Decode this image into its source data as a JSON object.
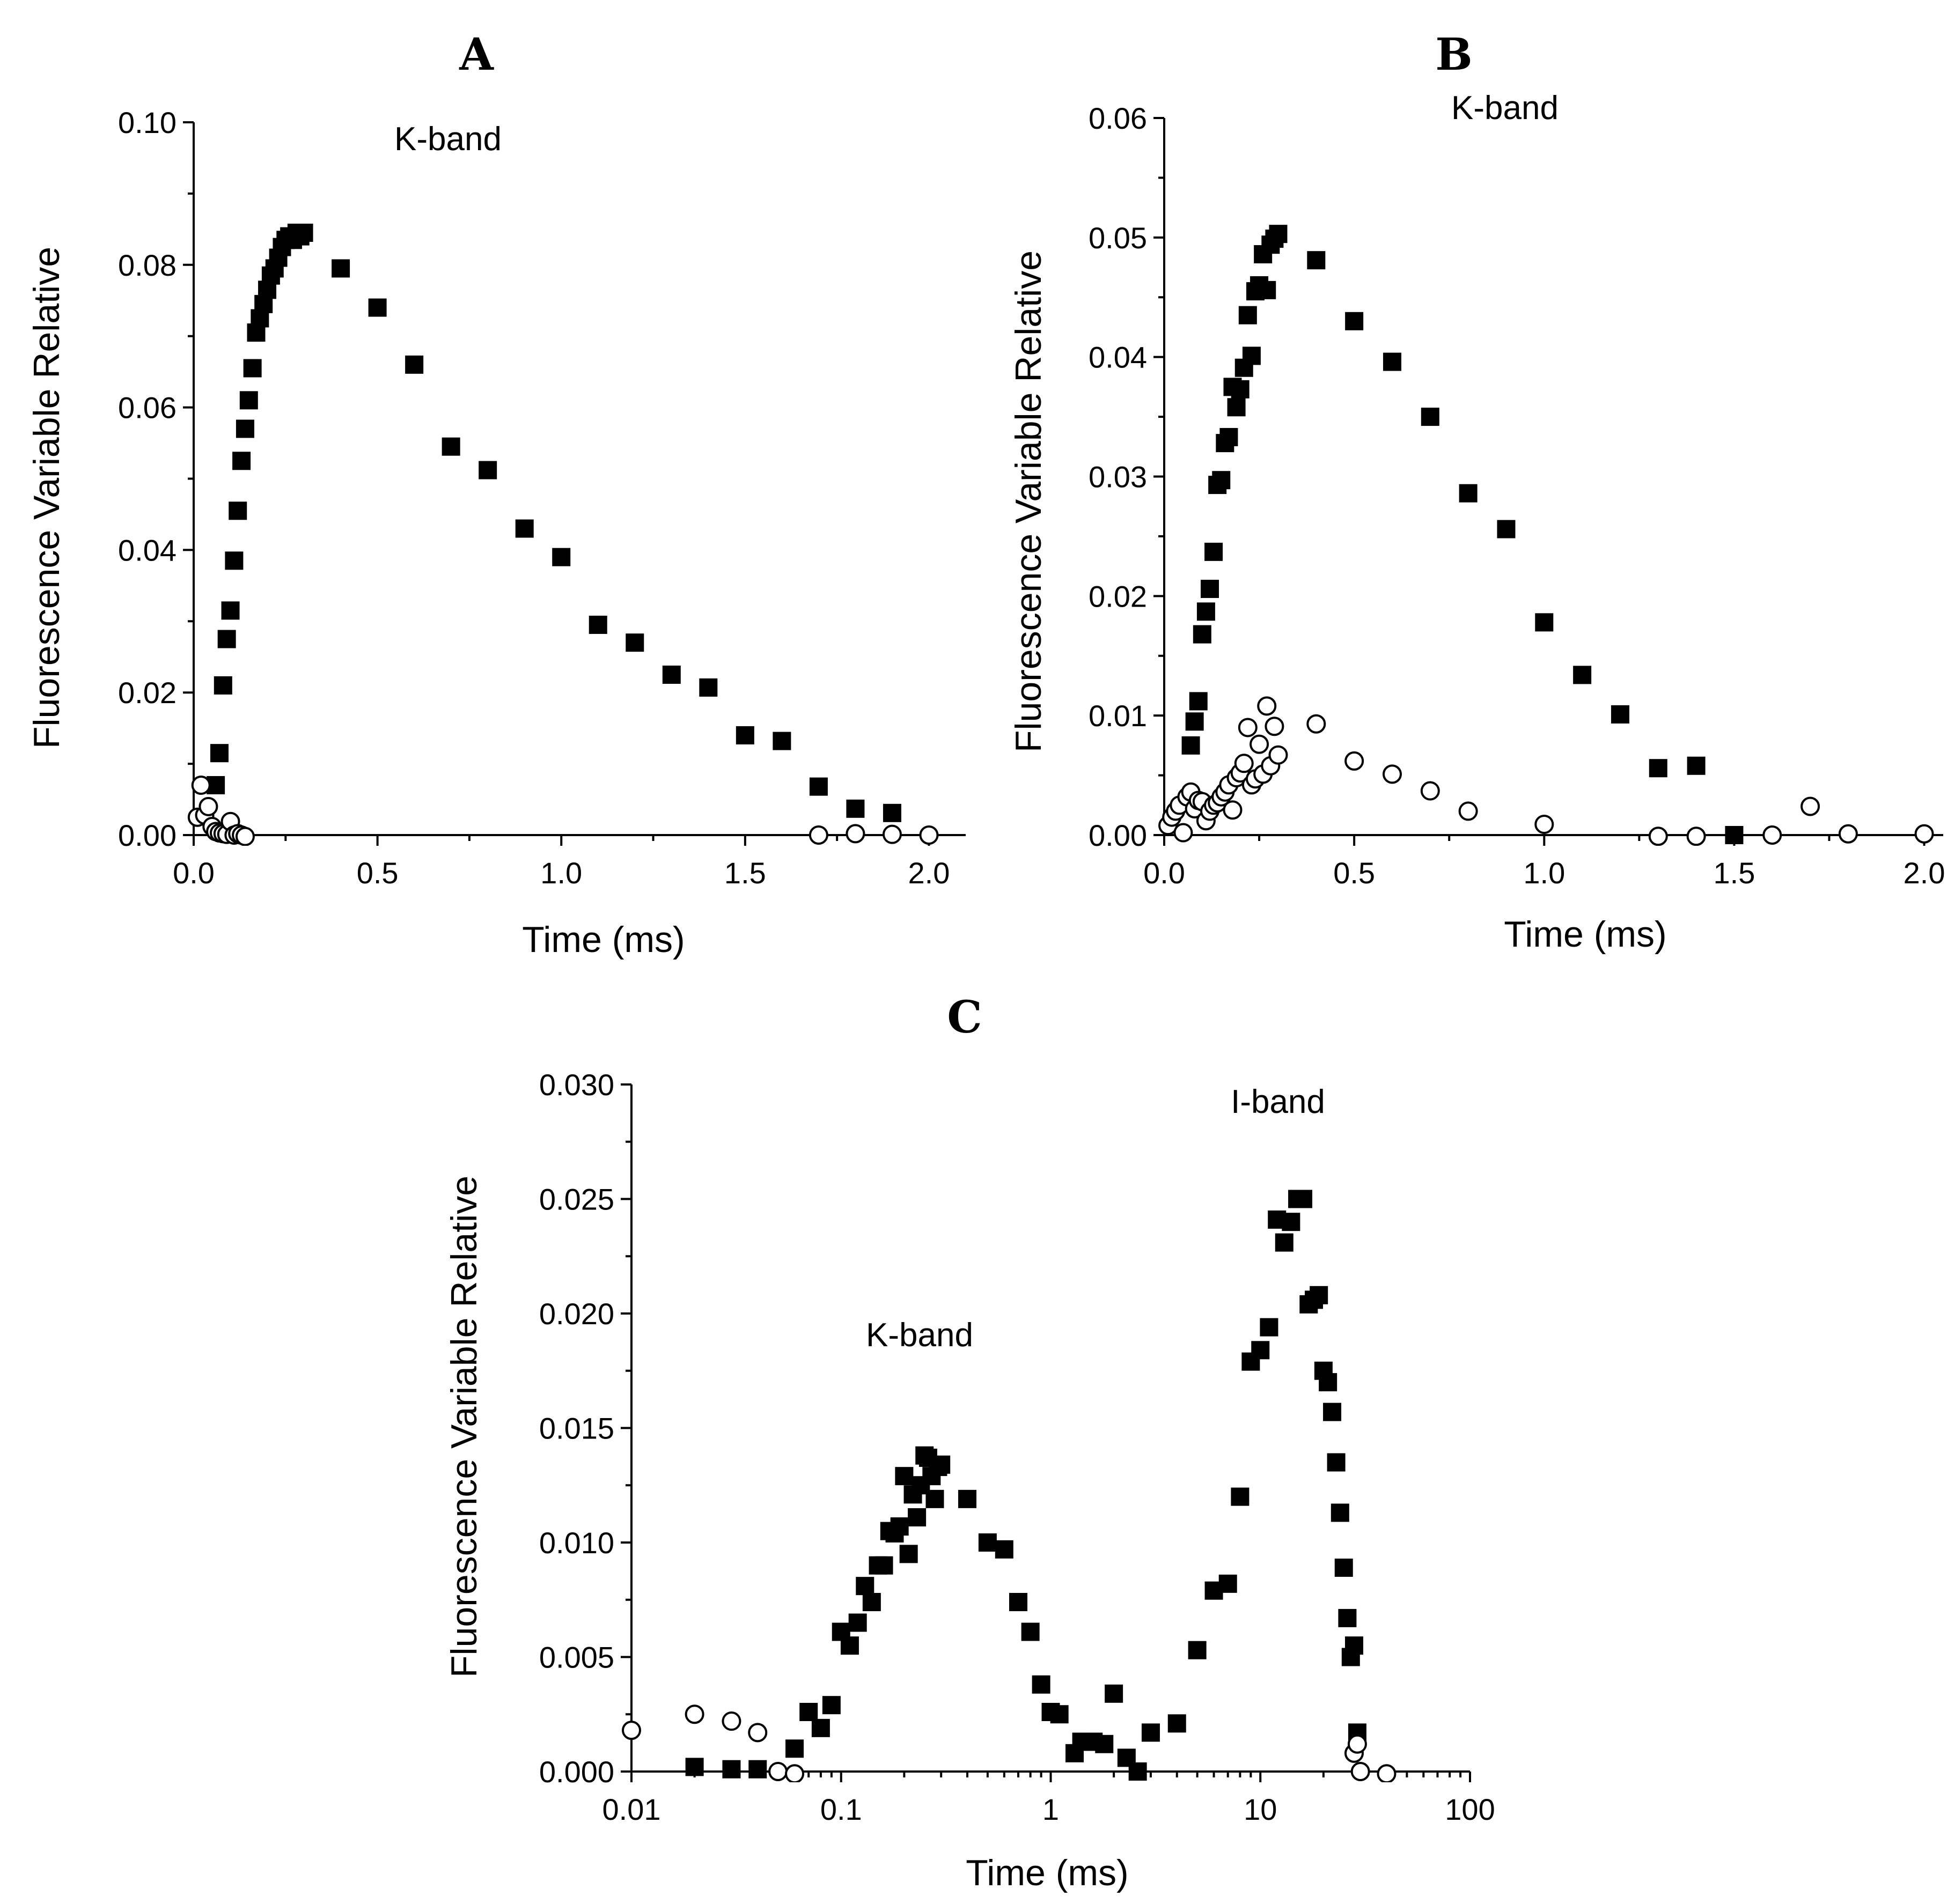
{
  "chart_data": [
    {
      "type": "scatter",
      "panel": "A",
      "title": "A",
      "annotations": [
        "K-band"
      ],
      "xlabel": "Time  (ms)",
      "ylabel": "Fluorescence Variable Relative",
      "xscale": "linear",
      "xlim": [
        0,
        2.1
      ],
      "ylim": [
        0,
        0.1
      ],
      "xticks": [
        0,
        0.5,
        1.0,
        1.5,
        2.0
      ],
      "xtick_labels": [
        "0.0",
        "0.5",
        "1.0",
        "1.5",
        "2.0"
      ],
      "yticks": [
        0,
        0.02,
        0.04,
        0.06,
        0.08,
        0.1
      ],
      "ytick_labels": [
        "0.00",
        "0.02",
        "0.04",
        "0.06",
        "0.08",
        "0.10"
      ],
      "series": [
        {
          "name": "filled squares",
          "marker": "square",
          "x": [
            0.06,
            0.07,
            0.08,
            0.09,
            0.1,
            0.11,
            0.12,
            0.13,
            0.14,
            0.15,
            0.16,
            0.17,
            0.18,
            0.19,
            0.2,
            0.21,
            0.22,
            0.23,
            0.24,
            0.25,
            0.26,
            0.27,
            0.28,
            0.29,
            0.3,
            0.4,
            0.5,
            0.6,
            0.7,
            0.8,
            0.9,
            1.0,
            1.1,
            1.2,
            1.3,
            1.4,
            1.5,
            1.6,
            1.7,
            1.8,
            1.9
          ],
          "y": [
            0.007,
            0.0115,
            0.021,
            0.0275,
            0.0315,
            0.0385,
            0.0455,
            0.0525,
            0.057,
            0.061,
            0.0655,
            0.0705,
            0.0725,
            0.0745,
            0.0765,
            0.0785,
            0.0795,
            0.081,
            0.0825,
            0.0835,
            0.084,
            0.0835,
            0.0845,
            0.084,
            0.0845,
            0.0795,
            0.074,
            0.066,
            0.0545,
            0.0512,
            0.043,
            0.039,
            0.0295,
            0.027,
            0.0225,
            0.0207,
            0.014,
            0.0132,
            0.0068,
            0.0037,
            0.0031
          ]
        },
        {
          "name": "open circles",
          "marker": "circle",
          "x": [
            0.01,
            0.02,
            0.03,
            0.04,
            0.05,
            0.06,
            0.07,
            0.08,
            0.09,
            0.1,
            0.11,
            0.12,
            0.13,
            0.14,
            1.7,
            1.8,
            1.9,
            2.0
          ],
          "y": [
            0.0025,
            0.007,
            0.0028,
            0.004,
            0.0012,
            0.0005,
            0.0003,
            0.0002,
            0.0001,
            0.0019,
            0.0,
            0.0002,
            0.0,
            -0.0002,
            0.0,
            0.0002,
            0.0001,
            0.0
          ]
        }
      ]
    },
    {
      "type": "scatter",
      "panel": "B",
      "title": "B",
      "annotations": [
        "K-band"
      ],
      "xlabel": "Time  (ms)",
      "ylabel": "Fluorescence Variable Relative",
      "xscale": "linear",
      "xlim": [
        0,
        2.05
      ],
      "ylim": [
        0,
        0.06
      ],
      "xticks": [
        0,
        0.5,
        1.0,
        1.5,
        2.0
      ],
      "xtick_labels": [
        "0.0",
        "0.5",
        "1.0",
        "1.5",
        "2.0"
      ],
      "yticks": [
        0,
        0.01,
        0.02,
        0.03,
        0.04,
        0.05,
        0.06
      ],
      "ytick_labels": [
        "0.00",
        "0.01",
        "0.02",
        "0.03",
        "0.04",
        "0.05",
        "0.06"
      ],
      "series": [
        {
          "name": "filled squares",
          "marker": "square",
          "x": [
            0.07,
            0.08,
            0.09,
            0.1,
            0.11,
            0.12,
            0.13,
            0.14,
            0.15,
            0.16,
            0.17,
            0.18,
            0.19,
            0.2,
            0.21,
            0.22,
            0.23,
            0.24,
            0.25,
            0.26,
            0.27,
            0.28,
            0.29,
            0.3,
            0.4,
            0.5,
            0.6,
            0.7,
            0.8,
            0.9,
            1.0,
            1.1,
            1.2,
            1.3,
            1.4,
            1.5
          ],
          "y": [
            0.0075,
            0.0095,
            0.0112,
            0.0168,
            0.0187,
            0.0206,
            0.0237,
            0.0293,
            0.0297,
            0.0328,
            0.0333,
            0.0375,
            0.0358,
            0.0373,
            0.0391,
            0.0435,
            0.0401,
            0.0455,
            0.046,
            0.0486,
            0.0456,
            0.0494,
            0.0499,
            0.0503,
            0.0481,
            0.043,
            0.0396,
            0.035,
            0.0286,
            0.0256,
            0.0178,
            0.0134,
            0.0101,
            0.0056,
            0.0058,
            0.0
          ]
        },
        {
          "name": "open circles",
          "marker": "circle",
          "x": [
            0.01,
            0.02,
            0.03,
            0.04,
            0.05,
            0.06,
            0.07,
            0.08,
            0.09,
            0.1,
            0.11,
            0.12,
            0.13,
            0.14,
            0.15,
            0.16,
            0.17,
            0.18,
            0.19,
            0.2,
            0.21,
            0.22,
            0.23,
            0.24,
            0.25,
            0.26,
            0.27,
            0.28,
            0.29,
            0.3,
            0.4,
            0.5,
            0.6,
            0.7,
            0.8,
            1.0,
            1.3,
            1.4,
            1.6,
            1.7,
            1.8,
            2.0
          ],
          "y": [
            0.0008,
            0.0015,
            0.002,
            0.0025,
            0.0002,
            0.0032,
            0.0036,
            0.0022,
            0.0029,
            0.0028,
            0.0012,
            0.002,
            0.0025,
            0.0027,
            0.0032,
            0.0036,
            0.0042,
            0.0021,
            0.0048,
            0.0052,
            0.006,
            0.009,
            0.0042,
            0.0047,
            0.0076,
            0.0051,
            0.0108,
            0.0058,
            0.0091,
            0.0067,
            0.0093,
            0.0062,
            0.0051,
            0.0037,
            0.002,
            0.0009,
            -0.0001,
            -0.0001,
            0.0,
            0.0024,
            0.0001,
            0.0001
          ]
        }
      ]
    },
    {
      "type": "scatter",
      "panel": "C",
      "title": "C",
      "annotations": [
        "K-band",
        "I-band"
      ],
      "xlabel": "Time  (ms)",
      "ylabel": "Fluorescence Variable Relative",
      "xscale": "log",
      "xlim": [
        0.01,
        100
      ],
      "ylim": [
        0,
        0.03
      ],
      "xticks": [
        0.01,
        0.1,
        1,
        10,
        100
      ],
      "xtick_labels": [
        "0.01",
        "0.1",
        "1",
        "10",
        "100"
      ],
      "yticks": [
        0,
        0.005,
        0.01,
        0.015,
        0.02,
        0.025,
        0.03
      ],
      "ytick_labels": [
        "0.000",
        "0.005",
        "0.010",
        "0.015",
        "0.020",
        "0.025",
        "0.030"
      ],
      "series": [
        {
          "name": "filled squares",
          "marker": "square",
          "x": [
            0.02,
            0.03,
            0.04,
            0.06,
            0.07,
            0.08,
            0.09,
            0.1,
            0.11,
            0.12,
            0.13,
            0.14,
            0.15,
            0.16,
            0.17,
            0.18,
            0.19,
            0.2,
            0.21,
            0.22,
            0.23,
            0.24,
            0.25,
            0.26,
            0.27,
            0.28,
            0.29,
            0.3,
            0.4,
            0.5,
            0.6,
            0.7,
            0.8,
            0.9,
            1.0,
            1.1,
            1.3,
            1.4,
            1.6,
            1.8,
            2.0,
            2.3,
            2.6,
            3.0,
            4.0,
            5.0,
            6.0,
            7.0,
            8.0,
            9.0,
            10.0,
            11.0,
            12.0,
            13.0,
            14.0,
            15.0,
            16.0,
            17.0,
            18.0,
            19.0,
            20.0,
            21.0,
            22.0,
            23.0,
            24.0,
            25.0,
            26.0,
            27.0,
            28.0,
            29.0
          ],
          "y": [
            0.0002,
            0.0001,
            0.0001,
            0.001,
            0.0026,
            0.0019,
            0.0029,
            0.0061,
            0.0055,
            0.0065,
            0.0081,
            0.0074,
            0.009,
            0.009,
            0.0105,
            0.0104,
            0.0107,
            0.0129,
            0.0095,
            0.0121,
            0.0111,
            0.0125,
            0.0138,
            0.0137,
            0.0129,
            0.0119,
            0.0133,
            0.0134,
            0.0119,
            0.01,
            0.0097,
            0.0074,
            0.0061,
            0.0038,
            0.0026,
            0.0025,
            0.0008,
            0.0013,
            0.0013,
            0.0012,
            0.0034,
            0.0006,
            0.0,
            0.0017,
            0.0021,
            0.0053,
            0.0079,
            0.0082,
            0.012,
            0.0179,
            0.0184,
            0.0194,
            0.0241,
            0.0231,
            0.024,
            0.025,
            0.025,
            0.0204,
            0.0206,
            0.0208,
            0.0175,
            0.017,
            0.0157,
            0.0135,
            0.0113,
            0.0089,
            0.0067,
            0.005,
            0.0055,
            0.0017
          ]
        },
        {
          "name": "open circles",
          "marker": "circle",
          "x": [
            0.01,
            0.02,
            0.03,
            0.04,
            0.05,
            0.06,
            28.0,
            29.0,
            30.0,
            40.0
          ],
          "y": [
            0.0018,
            0.0025,
            0.0022,
            0.0017,
            0.0,
            -0.0001,
            0.0008,
            0.0012,
            0.0,
            -0.0001
          ]
        }
      ]
    }
  ]
}
